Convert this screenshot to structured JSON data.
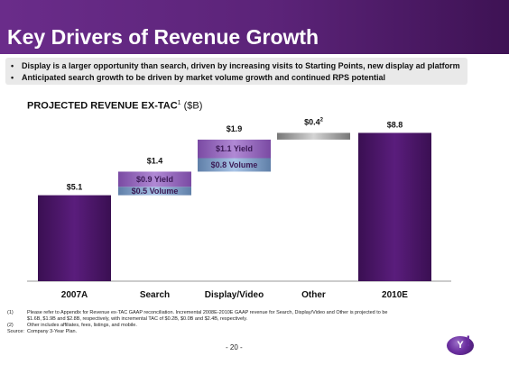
{
  "header": {
    "title": "Key Drivers of Revenue Growth"
  },
  "bullets": [
    "Display is a larger opportunity than search, driven by increasing visits to Starting Points, new display ad platform",
    "Anticipated search growth to be driven by market volume growth and continued RPS potential"
  ],
  "bullet_marker": "•",
  "subtitle": {
    "bold": "PROJECTED REVENUE EX-TAC",
    "sup": "1",
    "rest": " ($B)"
  },
  "chart_data": {
    "type": "waterfall",
    "title": "PROJECTED REVENUE EX-TAC (1) ($B)",
    "categories": [
      "2007A",
      "Search",
      "Display/Video",
      "Other",
      "2010E"
    ],
    "bars": [
      {
        "category": "2007A",
        "kind": "total",
        "value": 5.1,
        "label": "$5.1"
      },
      {
        "category": "Search",
        "kind": "increment",
        "base": 5.1,
        "value": 1.4,
        "label": "$1.4",
        "segments": [
          {
            "name": "Volume",
            "value": 0.5,
            "label": "$0.5 Volume"
          },
          {
            "name": "Yield",
            "value": 0.9,
            "label": "$0.9 Yield"
          }
        ]
      },
      {
        "category": "Display/Video",
        "kind": "increment",
        "base": 6.5,
        "value": 1.9,
        "label": "$1.9",
        "segments": [
          {
            "name": "Volume",
            "value": 0.8,
            "label": "$0.8 Volume"
          },
          {
            "name": "Yield",
            "value": 1.1,
            "label": "$1.1 Yield"
          }
        ]
      },
      {
        "category": "Other",
        "kind": "increment",
        "base": 8.4,
        "value": 0.4,
        "label": "$0.4",
        "label_sup": "2"
      },
      {
        "category": "2010E",
        "kind": "total",
        "value": 8.8,
        "label": "$8.8"
      }
    ],
    "colors": {
      "total": "#4a1466",
      "volume": "#7ea0c8",
      "yield": "#9a6fbe",
      "other": "#9a9a9a"
    }
  },
  "footnotes": [
    {
      "tag": "(1)",
      "text": "Please refer to Appendix for Revenue ex-TAC GAAP reconciliation. Incremental 2008E-2010E GAAP revenue for Search, Display/Video and Other is projected to be"
    },
    {
      "tag": "",
      "text": "$1.6B, $1.9B and $2.8B, respectively, with incremental TAC of $0.2B, $0.0B and $2.4B, respectively."
    },
    {
      "tag": "(2)",
      "text": "Other includes affiliates, fees, listings, and mobile."
    },
    {
      "tag": "Source:",
      "text": "Company 3-Year Plan."
    }
  ],
  "page_number": "- 20 -",
  "logo": {
    "text": "Y",
    "mark": "!"
  }
}
